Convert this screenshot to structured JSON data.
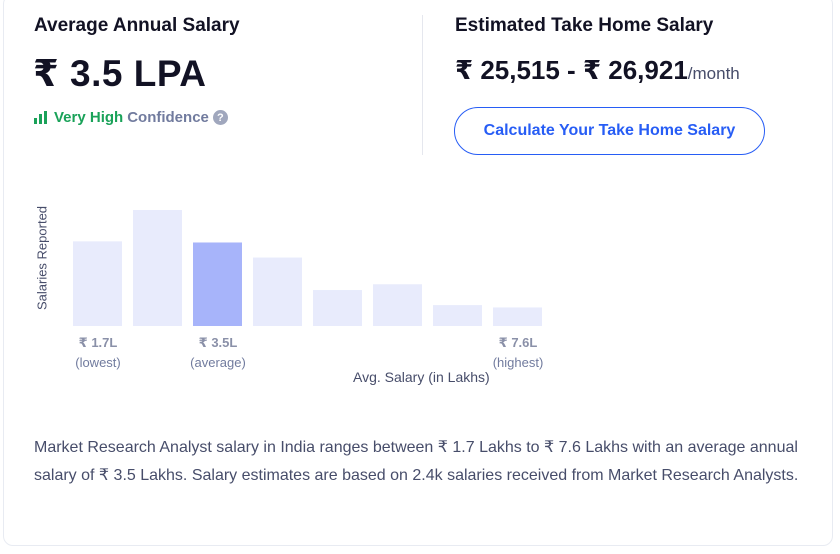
{
  "average": {
    "title": "Average Annual Salary",
    "value": "₹ 3.5 LPA",
    "confidence_level": "Very High",
    "confidence_label": "Confidence",
    "help_glyph": "?"
  },
  "take_home": {
    "title": "Estimated Take Home Salary",
    "range": "₹ 25,515 - ₹ 26,921",
    "unit": "/month",
    "button_label": "Calculate Your Take Home Salary"
  },
  "chart_data": {
    "type": "bar",
    "ylabel": "Salaries Reported",
    "xlabel": "Avg. Salary (in Lakhs)",
    "relative_counts": [
      0.73,
      1.0,
      0.72,
      0.59,
      0.31,
      0.36,
      0.18,
      0.16
    ],
    "highlight_index": 2,
    "ticks": [
      {
        "value": "₹ 1.7L",
        "caption": "(lowest)"
      },
      {
        "value": "₹ 3.5L",
        "caption": "(average)"
      },
      {
        "value": "₹ 7.6L",
        "caption": "(highest)"
      }
    ]
  },
  "description": "Market Research Analyst salary in India ranges between ₹ 1.7 Lakhs to ₹ 7.6 Lakhs with an average annual salary of ₹ 3.5 Lakhs. Salary estimates are based on 2.4k salaries received from Market Research Analysts.",
  "colors": {
    "bar": "#e8ebfc",
    "bar_highlight": "#a7b4fa",
    "accent": "#275df5",
    "confidence": "#1aa259"
  }
}
